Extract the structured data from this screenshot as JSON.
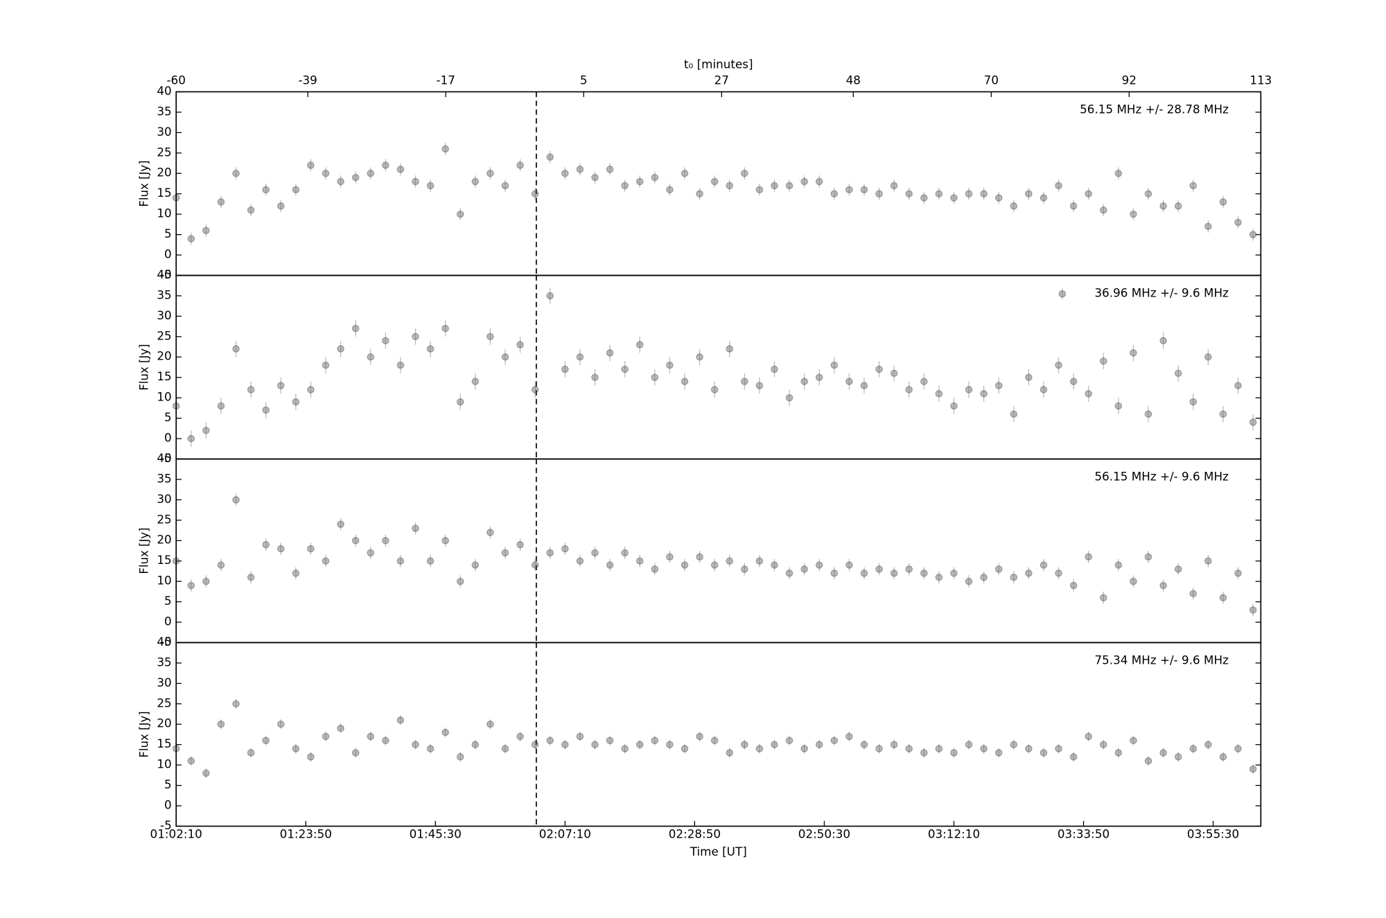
{
  "chart_data": [
    {
      "type": "scatter",
      "xlim": [
        0,
        181.3
      ],
      "ylim": [
        -5,
        40
      ],
      "yticks": [
        -5,
        0,
        5,
        10,
        15,
        20,
        25,
        30,
        35,
        40
      ],
      "ylabel": "Flux [Jy]",
      "vline_x": 60.2,
      "x2label": "t₀ [minutes]",
      "x2lim": [
        -60,
        113
      ],
      "x2ticks": [
        -60,
        -39,
        -17,
        5,
        27,
        48,
        70,
        92,
        113
      ],
      "x": [
        0,
        2.5,
        5,
        7.5,
        10,
        12.5,
        15,
        17.5,
        20,
        22.5,
        25,
        27.5,
        30,
        32.5,
        35,
        37.5,
        40,
        42.5,
        45,
        47.5,
        50,
        52.5,
        55,
        57.5,
        60,
        62.5,
        65,
        67.5,
        70,
        72.5,
        75,
        77.5,
        80,
        82.5,
        85,
        87.5,
        90,
        92.5,
        95,
        97.5,
        100,
        102.5,
        105,
        107.5,
        110,
        112.5,
        115,
        117.5,
        120,
        122.5,
        125,
        127.5,
        130,
        132.5,
        135,
        137.5,
        140,
        142.5,
        145,
        147.5,
        150,
        152.5,
        155,
        157.5,
        160,
        162.5,
        165,
        167.5,
        170,
        172.5,
        175,
        177.5,
        180
      ],
      "series": [
        {
          "name": "56.15 MHz +/- 28.78 MHz",
          "color": "#555555",
          "error": 1.5,
          "legend_marker": false,
          "values": [
            14,
            4,
            6,
            13,
            20,
            11,
            16,
            12,
            16,
            22,
            20,
            18,
            19,
            20,
            22,
            21,
            18,
            17,
            26,
            10,
            18,
            20,
            17,
            22,
            15,
            24,
            20,
            21,
            19,
            21,
            17,
            18,
            19,
            16,
            20,
            15,
            18,
            17,
            20,
            16,
            17,
            17,
            18,
            18,
            15,
            16,
            16,
            15,
            17,
            15,
            14,
            15,
            14,
            15,
            15,
            14,
            12,
            15,
            14,
            17,
            12,
            15,
            11,
            20,
            10,
            15,
            12,
            12,
            17,
            7,
            13,
            8,
            5
          ]
        }
      ]
    },
    {
      "type": "scatter",
      "xlim": [
        0,
        181.3
      ],
      "ylim": [
        -5,
        40
      ],
      "yticks": [
        -5,
        0,
        5,
        10,
        15,
        20,
        25,
        30,
        35,
        40
      ],
      "ylabel": "Flux [Jy]",
      "vline_x": 60.2,
      "x": [
        0,
        2.5,
        5,
        7.5,
        10,
        12.5,
        15,
        17.5,
        20,
        22.5,
        25,
        27.5,
        30,
        32.5,
        35,
        37.5,
        40,
        42.5,
        45,
        47.5,
        50,
        52.5,
        55,
        57.5,
        60,
        62.5,
        65,
        67.5,
        70,
        72.5,
        75,
        77.5,
        80,
        82.5,
        85,
        87.5,
        90,
        92.5,
        95,
        97.5,
        100,
        102.5,
        105,
        107.5,
        110,
        112.5,
        115,
        117.5,
        120,
        122.5,
        125,
        127.5,
        130,
        132.5,
        135,
        137.5,
        140,
        142.5,
        145,
        147.5,
        150,
        152.5,
        155,
        157.5,
        160,
        162.5,
        165,
        167.5,
        170,
        172.5,
        175,
        177.5,
        180
      ],
      "series": [
        {
          "name": "36.96 MHz +/- 9.6 MHz",
          "color": "#555555",
          "error": 2,
          "legend_marker": true,
          "values": [
            8,
            0,
            2,
            8,
            22,
            12,
            7,
            13,
            9,
            12,
            18,
            22,
            27,
            20,
            24,
            18,
            25,
            22,
            27,
            9,
            14,
            25,
            20,
            23,
            12,
            35,
            17,
            20,
            15,
            21,
            17,
            23,
            15,
            18,
            14,
            20,
            12,
            22,
            14,
            13,
            17,
            10,
            14,
            15,
            18,
            14,
            13,
            17,
            16,
            12,
            14,
            11,
            8,
            12,
            11,
            13,
            6,
            15,
            12,
            18,
            14,
            11,
            19,
            8,
            21,
            6,
            24,
            16,
            9,
            20,
            6,
            13,
            4
          ]
        }
      ]
    },
    {
      "type": "scatter",
      "xlim": [
        0,
        181.3
      ],
      "ylim": [
        -5,
        40
      ],
      "yticks": [
        -5,
        0,
        5,
        10,
        15,
        20,
        25,
        30,
        35,
        40
      ],
      "ylabel": "Flux [Jy]",
      "vline_x": 60.2,
      "x": [
        0,
        2.5,
        5,
        7.5,
        10,
        12.5,
        15,
        17.5,
        20,
        22.5,
        25,
        27.5,
        30,
        32.5,
        35,
        37.5,
        40,
        42.5,
        45,
        47.5,
        50,
        52.5,
        55,
        57.5,
        60,
        62.5,
        65,
        67.5,
        70,
        72.5,
        75,
        77.5,
        80,
        82.5,
        85,
        87.5,
        90,
        92.5,
        95,
        97.5,
        100,
        102.5,
        105,
        107.5,
        110,
        112.5,
        115,
        117.5,
        120,
        122.5,
        125,
        127.5,
        130,
        132.5,
        135,
        137.5,
        140,
        142.5,
        145,
        147.5,
        150,
        152.5,
        155,
        157.5,
        160,
        162.5,
        165,
        167.5,
        170,
        172.5,
        175,
        177.5,
        180
      ],
      "series": [
        {
          "name": "56.15 MHz +/- 9.6 MHz",
          "color": "#555555",
          "error": 1.5,
          "legend_marker": false,
          "values": [
            15,
            9,
            10,
            14,
            30,
            11,
            19,
            18,
            12,
            18,
            15,
            24,
            20,
            17,
            20,
            15,
            23,
            15,
            20,
            10,
            14,
            22,
            17,
            19,
            14,
            17,
            18,
            15,
            17,
            14,
            17,
            15,
            13,
            16,
            14,
            16,
            14,
            15,
            13,
            15,
            14,
            12,
            13,
            14,
            12,
            14,
            12,
            13,
            12,
            13,
            12,
            11,
            12,
            10,
            11,
            13,
            11,
            12,
            14,
            12,
            9,
            16,
            6,
            14,
            10,
            16,
            9,
            13,
            7,
            15,
            6,
            12,
            3
          ]
        }
      ]
    },
    {
      "type": "scatter",
      "xlim": [
        0,
        181.3
      ],
      "ylim": [
        -5,
        40
      ],
      "yticks": [
        -5,
        0,
        5,
        10,
        15,
        20,
        25,
        30,
        35,
        40
      ],
      "ylabel": "Flux [Jy]",
      "vline_x": 60.2,
      "xlabel": "Time [UT]",
      "xticks": [
        {
          "value": 0,
          "label": "01:02:10"
        },
        {
          "value": 21.667,
          "label": "01:23:50"
        },
        {
          "value": 43.333,
          "label": "01:45:30"
        },
        {
          "value": 65,
          "label": "02:07:10"
        },
        {
          "value": 86.667,
          "label": "02:28:50"
        },
        {
          "value": 108.333,
          "label": "02:50:30"
        },
        {
          "value": 130,
          "label": "03:12:10"
        },
        {
          "value": 151.667,
          "label": "03:33:50"
        },
        {
          "value": 173.333,
          "label": "03:55:30"
        }
      ],
      "x": [
        0,
        2.5,
        5,
        7.5,
        10,
        12.5,
        15,
        17.5,
        20,
        22.5,
        25,
        27.5,
        30,
        32.5,
        35,
        37.5,
        40,
        42.5,
        45,
        47.5,
        50,
        52.5,
        55,
        57.5,
        60,
        62.5,
        65,
        67.5,
        70,
        72.5,
        75,
        77.5,
        80,
        82.5,
        85,
        87.5,
        90,
        92.5,
        95,
        97.5,
        100,
        102.5,
        105,
        107.5,
        110,
        112.5,
        115,
        117.5,
        120,
        122.5,
        125,
        127.5,
        130,
        132.5,
        135,
        137.5,
        140,
        142.5,
        145,
        147.5,
        150,
        152.5,
        155,
        157.5,
        160,
        162.5,
        165,
        167.5,
        170,
        172.5,
        175,
        177.5,
        180
      ],
      "series": [
        {
          "name": "75.34 MHz +/- 9.6 MHz",
          "color": "#555555",
          "error": 1.2,
          "legend_marker": false,
          "values": [
            14,
            11,
            8,
            20,
            25,
            13,
            16,
            20,
            14,
            12,
            17,
            19,
            13,
            17,
            16,
            21,
            15,
            14,
            18,
            12,
            15,
            20,
            14,
            17,
            15,
            16,
            15,
            17,
            15,
            16,
            14,
            15,
            16,
            15,
            14,
            17,
            16,
            13,
            15,
            14,
            15,
            16,
            14,
            15,
            16,
            17,
            15,
            14,
            15,
            14,
            13,
            14,
            13,
            15,
            14,
            13,
            15,
            14,
            13,
            14,
            12,
            17,
            15,
            13,
            16,
            11,
            13,
            12,
            14,
            15,
            12,
            14,
            9
          ]
        }
      ]
    }
  ]
}
